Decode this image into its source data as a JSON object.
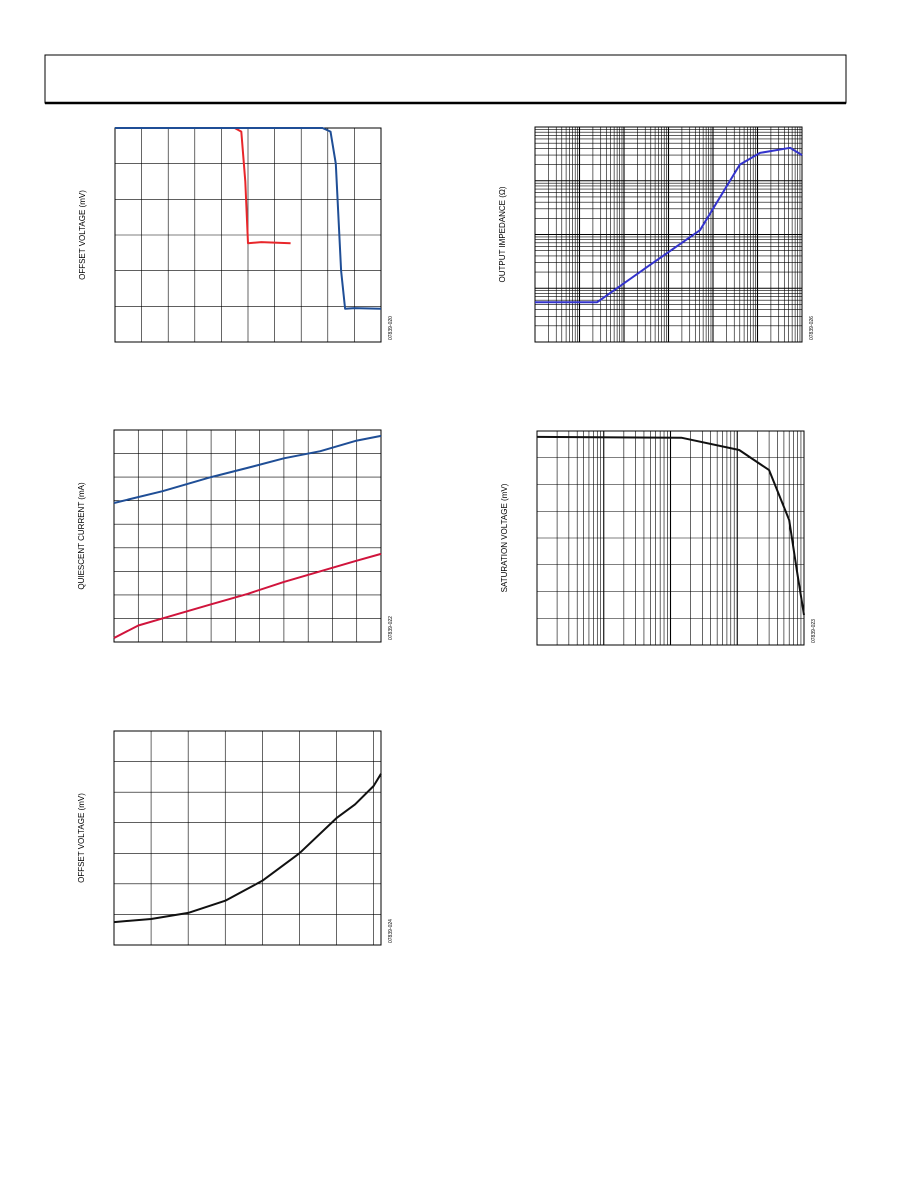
{
  "chart_data": [
    {
      "type": "line",
      "y_label": "OFFSET VOLTAGE (mV)",
      "figure_id": "07839-020",
      "xlim": [
        0,
        10
      ],
      "ylim": [
        0,
        6
      ],
      "grid": true,
      "series": [
        {
          "color": "#e8262a",
          "x": [
            0,
            4.5,
            4.75,
            4.9,
            5.0,
            5.5,
            6.6
          ],
          "values": [
            6,
            6,
            5.9,
            4.5,
            2.77,
            2.8,
            2.77
          ]
        },
        {
          "color": "#1f4e96",
          "x": [
            0,
            7.8,
            8.1,
            8.3,
            8.5,
            8.65,
            9,
            10
          ],
          "values": [
            6,
            6,
            5.9,
            5,
            2,
            0.93,
            0.95,
            0.93
          ]
        }
      ]
    },
    {
      "type": "line",
      "y_label": "QUIESCENT CURRENT (mA)",
      "figure_id": "07839-022",
      "xlim": [
        0,
        11
      ],
      "ylim": [
        0,
        9
      ],
      "grid": true,
      "series": [
        {
          "color": "#1f4e96",
          "x": [
            0,
            2,
            4,
            5.5,
            7,
            8.5,
            10,
            11
          ],
          "values": [
            5.9,
            6.4,
            7,
            7.39,
            7.8,
            8.1,
            8.55,
            8.75
          ]
        },
        {
          "color": "#d0143c",
          "x": [
            0,
            1,
            2,
            4,
            5.5,
            7,
            8.5,
            10,
            11
          ],
          "values": [
            0.17,
            0.7,
            1.0,
            1.6,
            2.04,
            2.55,
            3.0,
            3.45,
            3.74
          ]
        }
      ]
    },
    {
      "type": "line",
      "y_label": "OFFSET VOLTAGE (mV)",
      "figure_id": "07839-024",
      "xlim": [
        0,
        7.2
      ],
      "ylim": [
        0,
        7
      ],
      "grid": true,
      "series": [
        {
          "color": "#111111",
          "x": [
            0,
            1,
            2,
            3,
            4,
            5,
            6,
            6.5,
            7,
            7.2
          ],
          "values": [
            0.75,
            0.85,
            1.05,
            1.45,
            2.1,
            3.0,
            4.15,
            4.6,
            5.2,
            5.6
          ]
        }
      ]
    },
    {
      "type": "line",
      "y_label": "OUTPUT IMPEDANCE (Ω)",
      "figure_id": "07839-026",
      "xlim": [
        1,
        1000000
      ],
      "ylim": [
        1,
        10000
      ],
      "log_x": true,
      "log_y": true,
      "grid": true,
      "series": [
        {
          "color": "#3333cc",
          "x": [
            1,
            25,
            380,
            5100,
            40000,
            114000,
            540000,
            1000000
          ],
          "values": [
            5.5,
            5.5,
            27,
            120,
            2000,
            3300,
            4100,
            3000
          ]
        }
      ]
    },
    {
      "type": "line",
      "y_label": "SATURATION VOLTAGE (mV)",
      "figure_id": "07839-023",
      "xlim": [
        1,
        10000
      ],
      "ylim": [
        0,
        8
      ],
      "log_x": true,
      "grid": true,
      "series": [
        {
          "color": "#111111",
          "x": [
            1,
            145,
            1070,
            3000,
            6000,
            7800,
            10000
          ],
          "values": [
            7.78,
            7.75,
            7.29,
            6.54,
            4.67,
            2.8,
            1.12
          ]
        }
      ]
    }
  ]
}
